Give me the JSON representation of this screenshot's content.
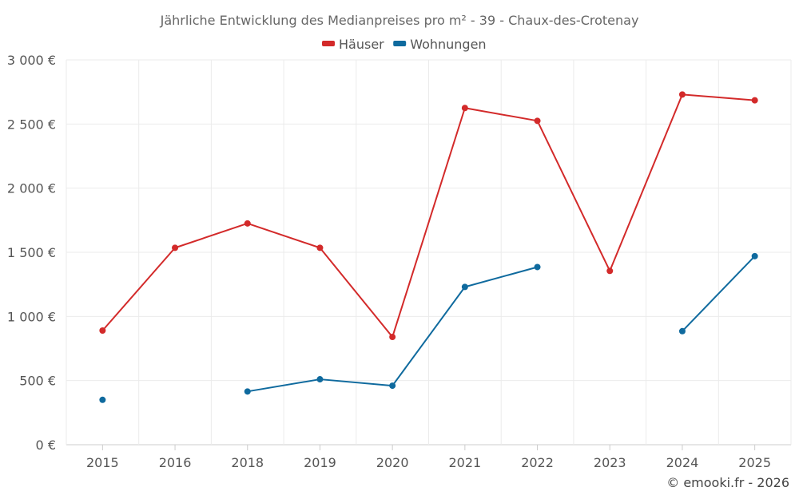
{
  "chart_data": {
    "type": "line",
    "title": "Jährliche Entwicklung des Medianpreises pro m² - 39 - Chaux-des-Crotenay",
    "categories": [
      "2015",
      "2016",
      "2018",
      "2019",
      "2020",
      "2021",
      "2022",
      "2023",
      "2024",
      "2025"
    ],
    "series": [
      {
        "name": "Häuser",
        "color": "#d32a2a",
        "values": [
          890,
          1535,
          1725,
          1535,
          840,
          2625,
          2525,
          1355,
          2730,
          2685
        ]
      },
      {
        "name": "Wohnungen",
        "color": "#0f6a9e",
        "values": [
          350,
          null,
          415,
          510,
          460,
          1230,
          1385,
          null,
          885,
          1470
        ]
      }
    ],
    "ylim": [
      0,
      3000
    ],
    "yticks": [
      0,
      500,
      1000,
      1500,
      2000,
      2500,
      3000
    ],
    "ytick_labels": [
      "0 €",
      "500 €",
      "1 000 €",
      "1 500 €",
      "2 000 €",
      "2 500 €",
      "3 000 €"
    ],
    "xlabel": "",
    "ylabel": "",
    "grid": true,
    "legend_position": "top-center"
  },
  "credit": "© emooki.fr - 2026"
}
